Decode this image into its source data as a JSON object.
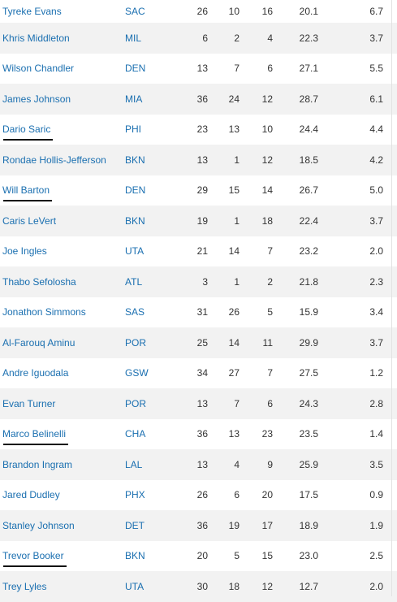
{
  "rows": [
    {
      "player": "Tyreke Evans",
      "team": "SAC",
      "c1": "26",
      "c2": "10",
      "c3": "16",
      "c4": "20.1",
      "c5": "6.7",
      "underlined": false
    },
    {
      "player": "Khris Middleton",
      "team": "MIL",
      "c1": "6",
      "c2": "2",
      "c3": "4",
      "c4": "22.3",
      "c5": "3.7",
      "underlined": false
    },
    {
      "player": "Wilson Chandler",
      "team": "DEN",
      "c1": "13",
      "c2": "7",
      "c3": "6",
      "c4": "27.1",
      "c5": "5.5",
      "underlined": false
    },
    {
      "player": "James Johnson",
      "team": "MIA",
      "c1": "36",
      "c2": "24",
      "c3": "12",
      "c4": "28.7",
      "c5": "6.1",
      "underlined": false
    },
    {
      "player": "Dario Saric",
      "team": "PHI",
      "c1": "23",
      "c2": "13",
      "c3": "10",
      "c4": "24.4",
      "c5": "4.4",
      "underlined": true
    },
    {
      "player": "Rondae Hollis-Jefferson",
      "team": "BKN",
      "c1": "13",
      "c2": "1",
      "c3": "12",
      "c4": "18.5",
      "c5": "4.2",
      "underlined": false
    },
    {
      "player": "Will Barton",
      "team": "DEN",
      "c1": "29",
      "c2": "15",
      "c3": "14",
      "c4": "26.7",
      "c5": "5.0",
      "underlined": true
    },
    {
      "player": "Caris LeVert",
      "team": "BKN",
      "c1": "19",
      "c2": "1",
      "c3": "18",
      "c4": "22.4",
      "c5": "3.7",
      "underlined": false
    },
    {
      "player": "Joe Ingles",
      "team": "UTA",
      "c1": "21",
      "c2": "14",
      "c3": "7",
      "c4": "23.2",
      "c5": "2.0",
      "underlined": false
    },
    {
      "player": "Thabo Sefolosha",
      "team": "ATL",
      "c1": "3",
      "c2": "1",
      "c3": "2",
      "c4": "21.8",
      "c5": "2.3",
      "underlined": false
    },
    {
      "player": "Jonathon Simmons",
      "team": "SAS",
      "c1": "31",
      "c2": "26",
      "c3": "5",
      "c4": "15.9",
      "c5": "3.4",
      "underlined": false
    },
    {
      "player": "Al-Farouq Aminu",
      "team": "POR",
      "c1": "25",
      "c2": "14",
      "c3": "11",
      "c4": "29.9",
      "c5": "3.7",
      "underlined": false
    },
    {
      "player": "Andre Iguodala",
      "team": "GSW",
      "c1": "34",
      "c2": "27",
      "c3": "7",
      "c4": "27.5",
      "c5": "1.2",
      "underlined": false
    },
    {
      "player": "Evan Turner",
      "team": "POR",
      "c1": "13",
      "c2": "7",
      "c3": "6",
      "c4": "24.3",
      "c5": "2.8",
      "underlined": false
    },
    {
      "player": "Marco Belinelli",
      "team": "CHA",
      "c1": "36",
      "c2": "13",
      "c3": "23",
      "c4": "23.5",
      "c5": "1.4",
      "underlined": true
    },
    {
      "player": "Brandon Ingram",
      "team": "LAL",
      "c1": "13",
      "c2": "4",
      "c3": "9",
      "c4": "25.9",
      "c5": "3.5",
      "underlined": false
    },
    {
      "player": "Jared Dudley",
      "team": "PHX",
      "c1": "26",
      "c2": "6",
      "c3": "20",
      "c4": "17.5",
      "c5": "0.9",
      "underlined": false
    },
    {
      "player": "Stanley Johnson",
      "team": "DET",
      "c1": "36",
      "c2": "19",
      "c3": "17",
      "c4": "18.9",
      "c5": "1.9",
      "underlined": false
    },
    {
      "player": "Trevor Booker",
      "team": "BKN",
      "c1": "20",
      "c2": "5",
      "c3": "15",
      "c4": "23.0",
      "c5": "2.5",
      "underlined": true
    },
    {
      "player": "Trey Lyles",
      "team": "UTA",
      "c1": "30",
      "c2": "18",
      "c3": "12",
      "c4": "12.7",
      "c5": "2.0",
      "underlined": false
    }
  ]
}
